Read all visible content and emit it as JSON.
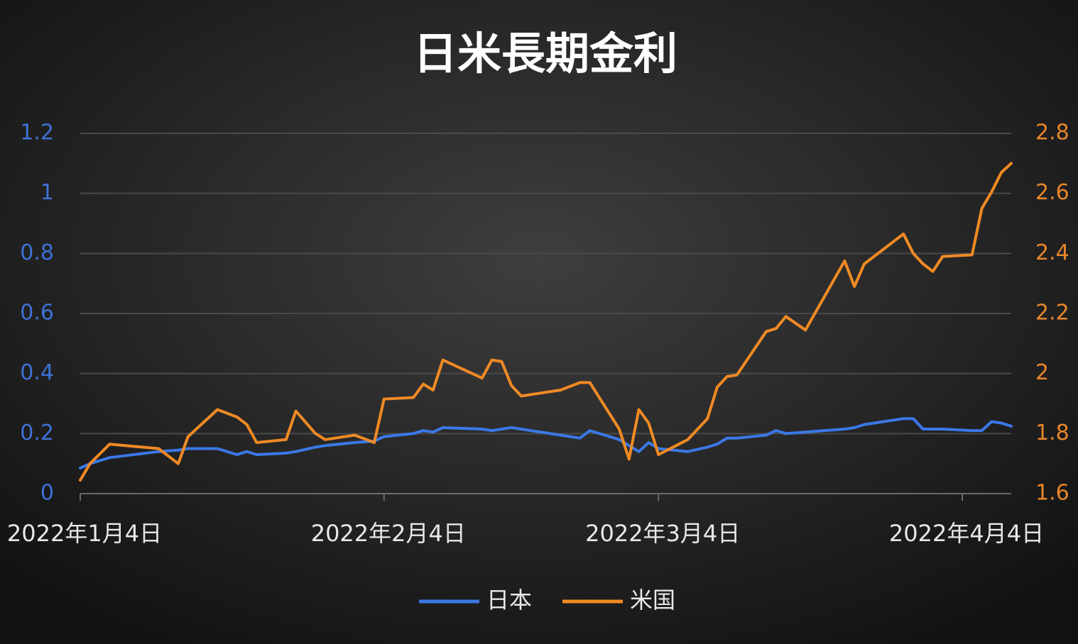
{
  "chart_data": {
    "type": "line",
    "title": "日米長期金利",
    "x": [
      "2022-01-04",
      "2022-01-05",
      "2022-01-07",
      "2022-01-12",
      "2022-01-14",
      "2022-01-15",
      "2022-01-18",
      "2022-01-20",
      "2022-01-21",
      "2022-01-22",
      "2022-01-25",
      "2022-01-26",
      "2022-01-28",
      "2022-01-29",
      "2022-02-01",
      "2022-02-03",
      "2022-02-04",
      "2022-02-07",
      "2022-02-08",
      "2022-02-09",
      "2022-02-10",
      "2022-02-14",
      "2022-02-15",
      "2022-02-16",
      "2022-02-17",
      "2022-02-18",
      "2022-02-22",
      "2022-02-24",
      "2022-02-25",
      "2022-02-28",
      "2022-03-01",
      "2022-03-02",
      "2022-03-03",
      "2022-03-04",
      "2022-03-07",
      "2022-03-09",
      "2022-03-10",
      "2022-03-11",
      "2022-03-12",
      "2022-03-15",
      "2022-03-16",
      "2022-03-17",
      "2022-03-19",
      "2022-03-23",
      "2022-03-24",
      "2022-03-25",
      "2022-03-29",
      "2022-03-30",
      "2022-03-31",
      "2022-04-01",
      "2022-04-02",
      "2022-04-05",
      "2022-04-06",
      "2022-04-07",
      "2022-04-08",
      "2022-04-09"
    ],
    "series": [
      {
        "name": "日本",
        "color": "#3b78e7",
        "axis": "y",
        "values": [
          0.085,
          0.1,
          0.12,
          0.14,
          0.145,
          0.15,
          0.15,
          0.13,
          0.14,
          0.13,
          0.135,
          0.14,
          0.155,
          0.16,
          0.17,
          0.175,
          0.19,
          0.2,
          0.21,
          0.205,
          0.22,
          0.215,
          0.21,
          0.215,
          0.22,
          0.215,
          0.195,
          0.185,
          0.21,
          0.18,
          0.16,
          0.14,
          0.17,
          0.15,
          0.14,
          0.155,
          0.165,
          0.185,
          0.185,
          0.195,
          0.21,
          0.2,
          0.205,
          0.215,
          0.22,
          0.23,
          0.25,
          0.25,
          0.215,
          0.215,
          0.215,
          0.21,
          0.21,
          0.24,
          0.235,
          0.225
        ]
      },
      {
        "name": "米国",
        "color": "#f08a24",
        "axis": "y2",
        "values": [
          1.645,
          1.7,
          1.765,
          1.75,
          1.7,
          1.79,
          1.88,
          1.855,
          1.83,
          1.77,
          1.78,
          1.875,
          1.8,
          1.78,
          1.795,
          1.77,
          1.915,
          1.92,
          1.965,
          1.945,
          2.045,
          1.985,
          2.045,
          2.04,
          1.96,
          1.925,
          1.945,
          1.97,
          1.97,
          1.815,
          1.715,
          1.88,
          1.835,
          1.73,
          1.78,
          1.85,
          1.955,
          1.99,
          1.995,
          2.14,
          2.15,
          2.19,
          2.145,
          2.375,
          2.29,
          2.365,
          2.465,
          2.4,
          2.365,
          2.34,
          2.39,
          2.395,
          2.55,
          2.605,
          2.67,
          2.7
        ]
      }
    ],
    "xlim": [
      "2022-01-04",
      "2022-04-09"
    ],
    "xticks": [
      {
        "value": "2022-01-04",
        "label": "2022年1月4日"
      },
      {
        "value": "2022-02-04",
        "label": "2022年2月4日"
      },
      {
        "value": "2022-03-04",
        "label": "2022年3月4日"
      },
      {
        "value": "2022-04-04",
        "label": "2022年4月4日"
      }
    ],
    "ylim": [
      0,
      1.2
    ],
    "yticks": [
      0,
      0.2,
      0.4,
      0.6,
      0.8,
      1,
      1.2
    ],
    "y2lim": [
      1.6,
      2.8
    ],
    "y2ticks": [
      1.6,
      1.8,
      2,
      2.2,
      2.4,
      2.6,
      2.8
    ],
    "grid": true,
    "legend": "bottom"
  }
}
